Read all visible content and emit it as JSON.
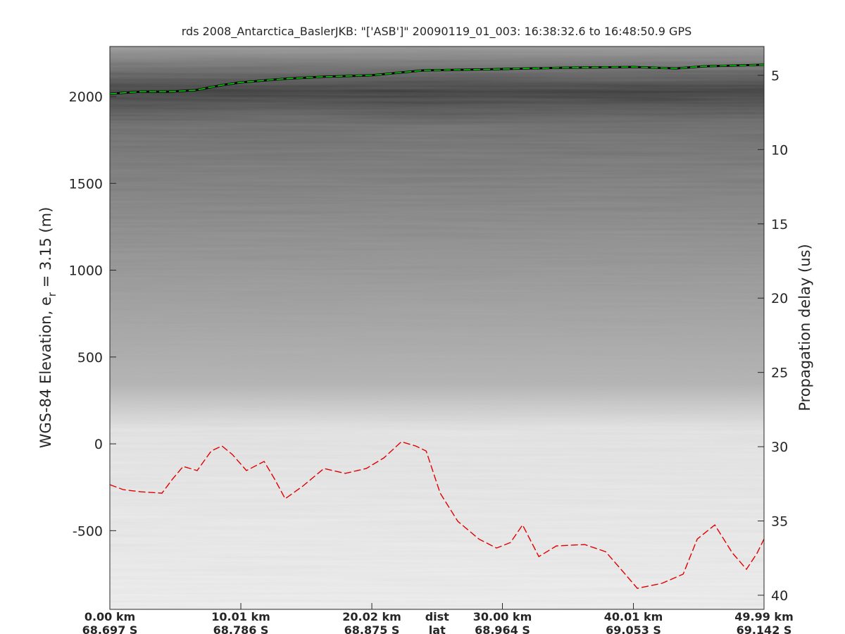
{
  "chart_data": {
    "type": "line",
    "title": "rds 2008_Antarctica_BaslerJKB: \"['ASB']\"  20090119_01_003: 16:38:32.6 to 16:48:50.9 GPS",
    "ylabel_parts": [
      "WGS-84 Elevation, e",
      "r",
      " = 3.15 (m)"
    ],
    "y2label": "Propagation delay (us)",
    "xlim": [
      0,
      49.99
    ],
    "xticks": [
      {
        "value": 0,
        "label": "0.00 km"
      },
      {
        "value": 10.01,
        "label": "10.01 km"
      },
      {
        "value": 20.02,
        "label": "20.02 km"
      },
      {
        "value": 30.0,
        "label": "30.00 km"
      },
      {
        "value": 40.01,
        "label": "40.01 km"
      },
      {
        "value": 49.99,
        "label": "49.99 km"
      }
    ],
    "xtick_sublabels": [
      "68.697 S",
      "68.786 S",
      "68.875 S",
      "68.964 S",
      "69.053 S",
      "69.142 S"
    ],
    "xaxis_labels": [
      "dist",
      "lat"
    ],
    "ylim": [
      -953,
      2288
    ],
    "yticks": [
      -500,
      0,
      500,
      1000,
      1500,
      2000
    ],
    "y2lim": [
      40.95,
      3.06
    ],
    "y2ticks": [
      5,
      10,
      15,
      20,
      25,
      30,
      35,
      40
    ],
    "series": [
      {
        "name": "surface",
        "color": "#00e000",
        "x": [
          0,
          2.37,
          4.52,
          6.51,
          8.83,
          10.01,
          13.13,
          16.36,
          20.02,
          23.9,
          30.0,
          34.67,
          40.01,
          43.28,
          45.43,
          49.99
        ],
        "values": [
          2016,
          2028,
          2028,
          2036,
          2069,
          2081,
          2101,
          2114,
          2122,
          2150,
          2158,
          2166,
          2170,
          2162,
          2174,
          2183
        ]
      },
      {
        "name": "bed",
        "color": "#e00000",
        "x": [
          0,
          1.02,
          2.37,
          3.98,
          4.79,
          5.6,
          6.67,
          7.75,
          8.56,
          9.36,
          10.44,
          11.79,
          12.59,
          13.4,
          14.75,
          16.36,
          17.98,
          19.59,
          20.94,
          22.28,
          23.36,
          24.17,
          25.24,
          26.59,
          28.2,
          29.55,
          30.62,
          31.54,
          32.78,
          34.12,
          36.28,
          37.89,
          39.24,
          40.31,
          42.2,
          43.81,
          44.89,
          46.23,
          47.58,
          48.65,
          49.46,
          49.99
        ],
        "values": [
          -235,
          -264,
          -276,
          -284,
          -203,
          -130,
          -154,
          -41,
          -12,
          -61,
          -154,
          -101,
          -203,
          -316,
          -243,
          -142,
          -170,
          -142,
          -81,
          12,
          -12,
          -41,
          -284,
          -446,
          -548,
          -600,
          -568,
          -467,
          -649,
          -588,
          -580,
          -621,
          -738,
          -832,
          -803,
          -750,
          -548,
          -467,
          -629,
          -722,
          -629,
          -548
        ]
      }
    ]
  }
}
